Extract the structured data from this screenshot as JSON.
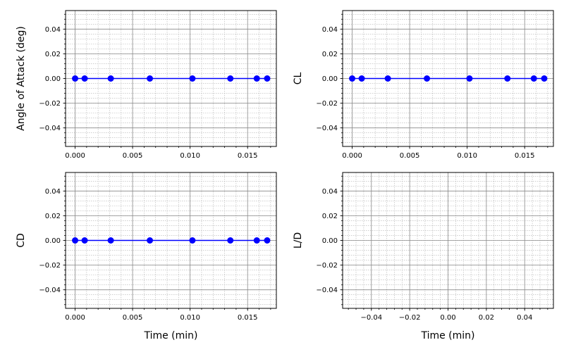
{
  "chart_data": [
    {
      "type": "line",
      "ylabel": "Angle of Attack (deg)",
      "xlabel": "",
      "x_ticks": [
        "0.000",
        "0.005",
        "0.010",
        "0.015"
      ],
      "y_ticks": [
        "0.04",
        "0.02",
        "0.00",
        "−0.02",
        "−0.04"
      ],
      "xlim": [
        -0.00083,
        0.0175
      ],
      "ylim": [
        -0.055,
        0.055
      ],
      "grid": true,
      "series": [
        {
          "color": "#0000ff",
          "marker": "circle",
          "x": [
            0.0,
            0.00083,
            0.0031,
            0.0065,
            0.0102,
            0.0135,
            0.0158,
            0.0167
          ],
          "y": [
            0,
            0,
            0,
            0,
            0,
            0,
            0,
            0
          ]
        }
      ]
    },
    {
      "type": "line",
      "ylabel": "CL",
      "xlabel": "",
      "x_ticks": [
        "0.000",
        "0.005",
        "0.010",
        "0.015"
      ],
      "y_ticks": [
        "0.04",
        "0.02",
        "0.00",
        "−0.02",
        "−0.04"
      ],
      "xlim": [
        -0.00083,
        0.0175
      ],
      "ylim": [
        -0.055,
        0.055
      ],
      "grid": true,
      "series": [
        {
          "color": "#0000ff",
          "marker": "circle",
          "x": [
            0.0,
            0.00083,
            0.0031,
            0.0065,
            0.0102,
            0.0135,
            0.0158,
            0.0167
          ],
          "y": [
            0,
            0,
            0,
            0,
            0,
            0,
            0,
            0
          ]
        }
      ]
    },
    {
      "type": "line",
      "ylabel": "CD",
      "xlabel": "Time (min)",
      "x_ticks": [
        "0.000",
        "0.005",
        "0.010",
        "0.015"
      ],
      "y_ticks": [
        "0.04",
        "0.02",
        "0.00",
        "−0.02",
        "−0.04"
      ],
      "xlim": [
        -0.00083,
        0.0175
      ],
      "ylim": [
        -0.055,
        0.055
      ],
      "grid": true,
      "series": [
        {
          "color": "#0000ff",
          "marker": "circle",
          "x": [
            0.0,
            0.00083,
            0.0031,
            0.0065,
            0.0102,
            0.0135,
            0.0158,
            0.0167
          ],
          "y": [
            0,
            0,
            0,
            0,
            0,
            0,
            0,
            0
          ]
        }
      ]
    },
    {
      "type": "line",
      "ylabel": "L/D",
      "xlabel": "Time (min)",
      "x_ticks": [
        "−0.04",
        "−0.02",
        "0.00",
        "0.02",
        "0.04"
      ],
      "y_ticks": [
        "0.04",
        "0.02",
        "0.00",
        "−0.02",
        "−0.04"
      ],
      "xlim": [
        -0.055,
        0.055
      ],
      "ylim": [
        -0.055,
        0.055
      ],
      "grid": true,
      "series": []
    }
  ]
}
